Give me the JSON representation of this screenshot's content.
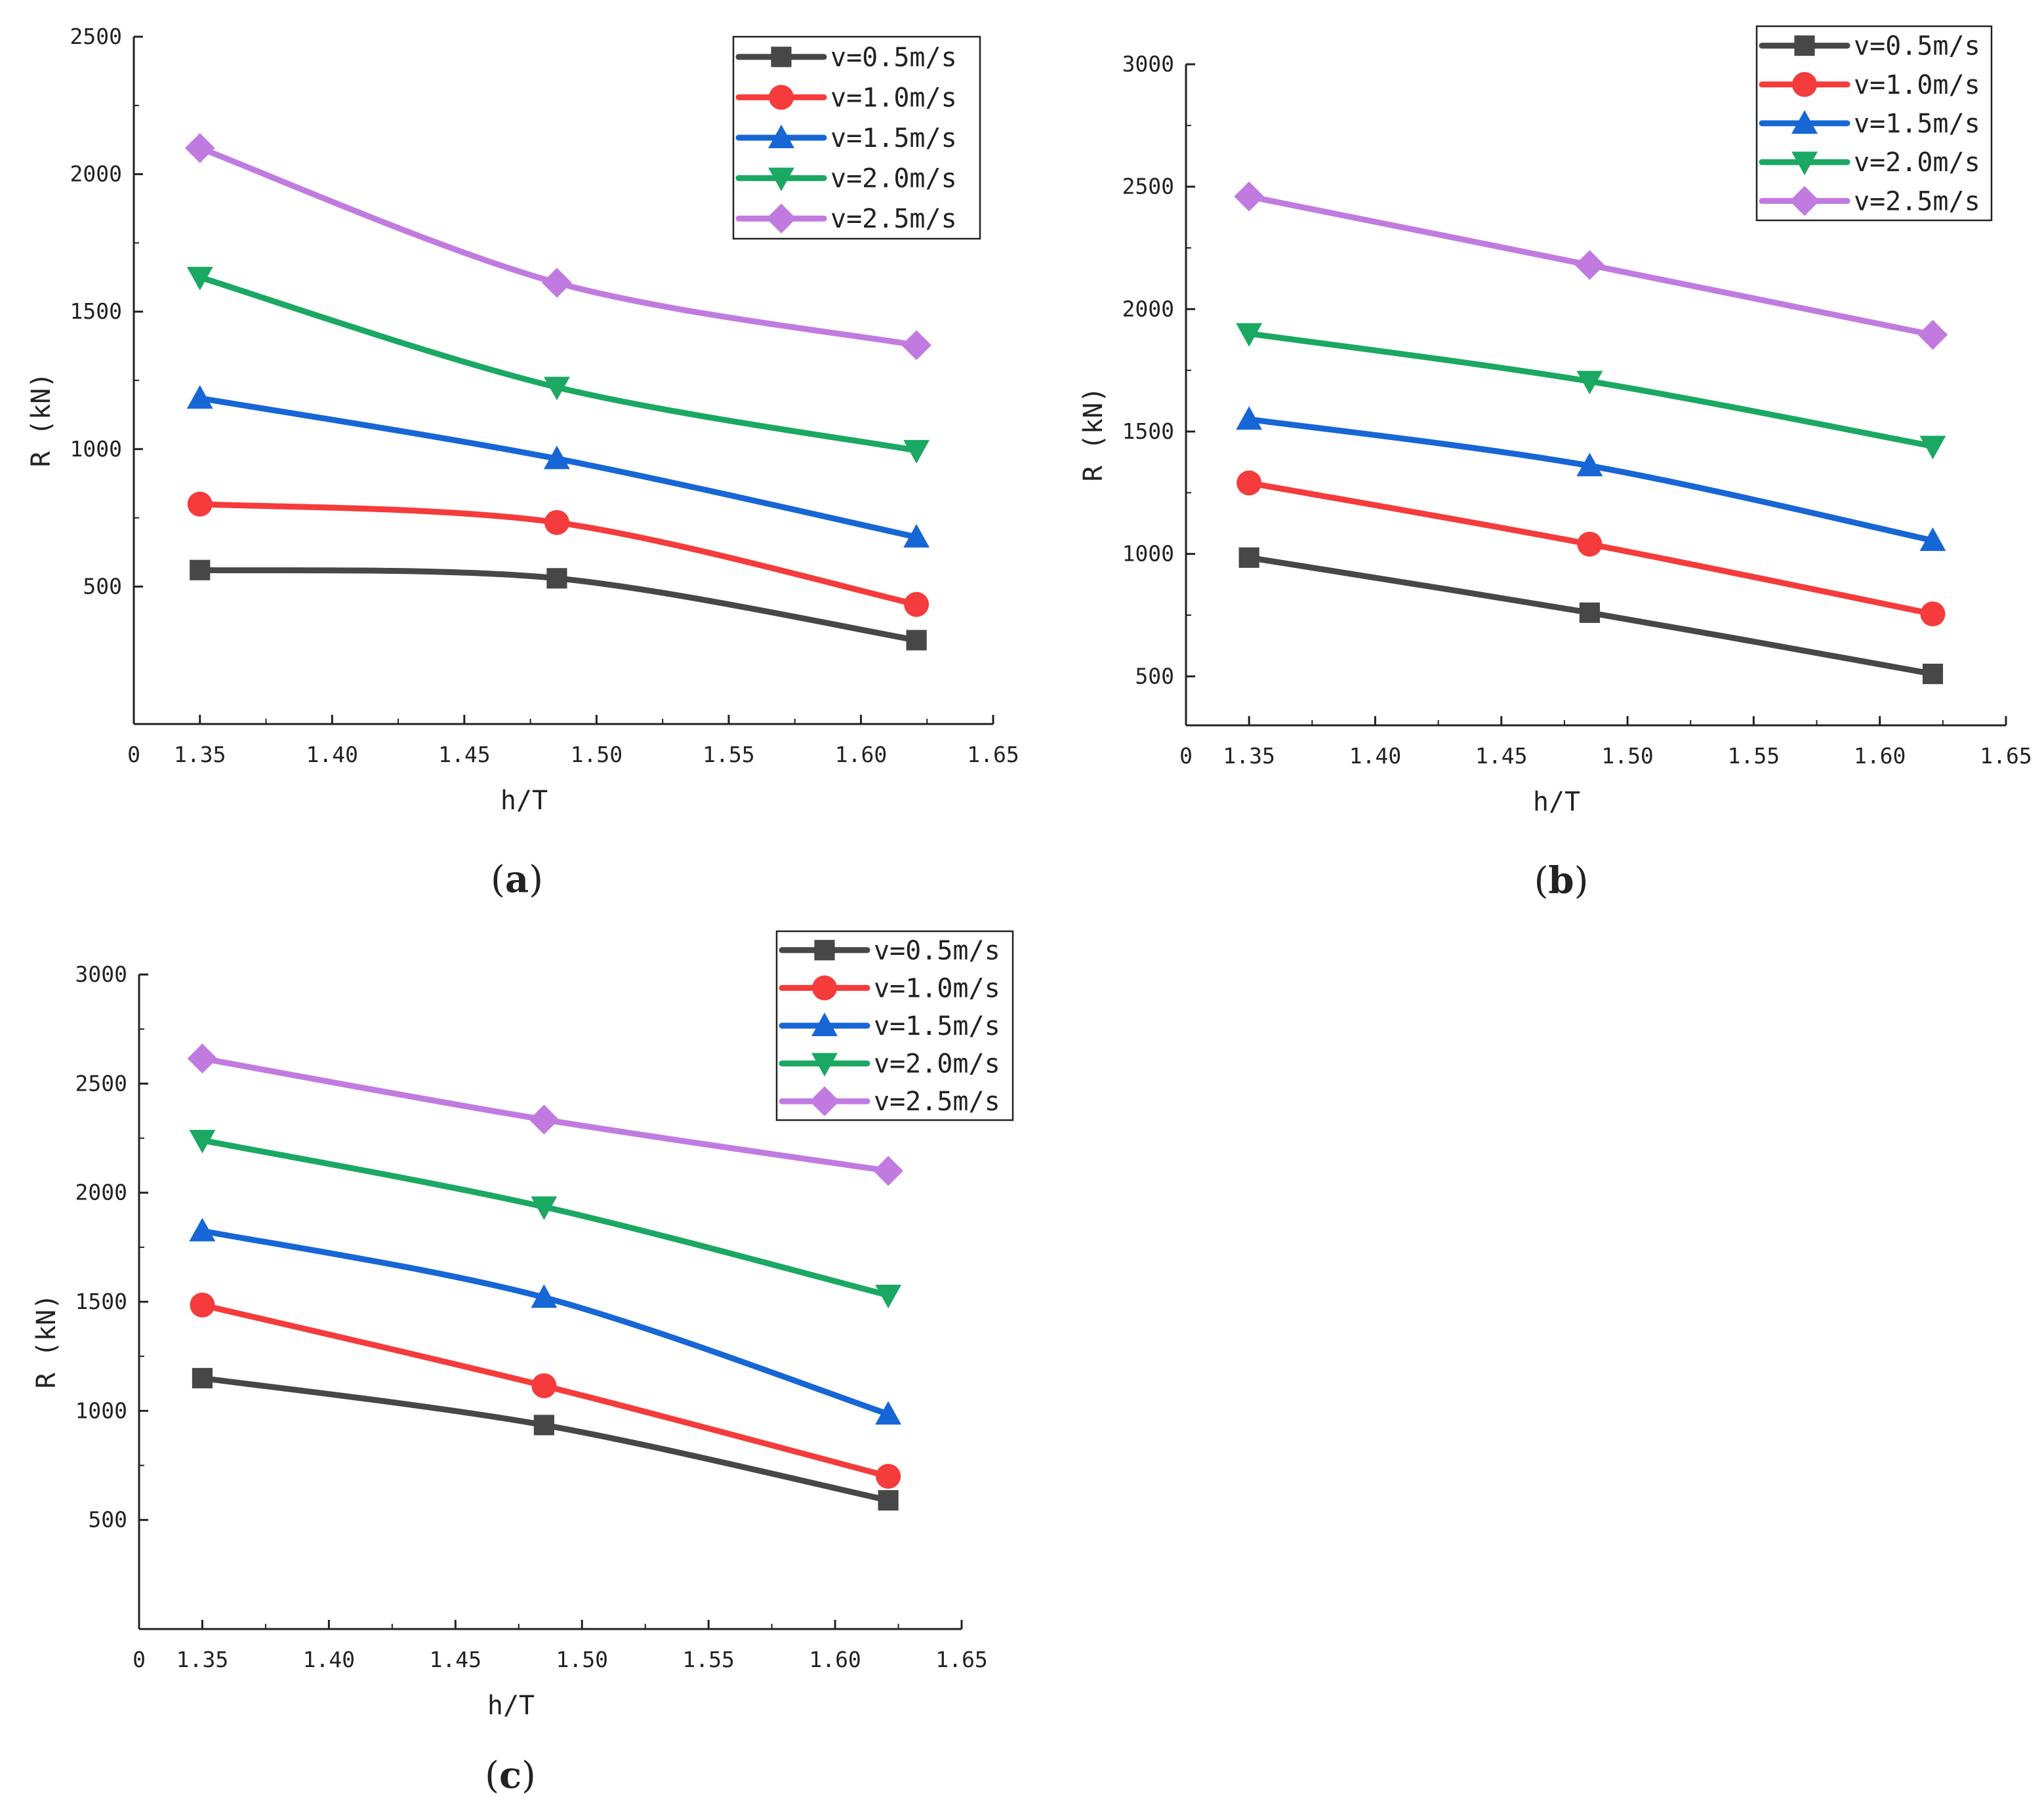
{
  "chart_data": [
    {
      "type": "line",
      "panel_label": "(a)",
      "caption_open": "(",
      "caption_letter": "a",
      "caption_close": ")",
      "xlabel": "h/T",
      "ylabel": "R (kN)",
      "xlim": [
        1.325,
        1.65
      ],
      "ylim": [
        0,
        2500
      ],
      "xticks": [
        1.35,
        1.4,
        1.45,
        1.5,
        1.55,
        1.6,
        1.65
      ],
      "xtick_labels": [
        "1.35",
        "1.40",
        "1.45",
        "1.50",
        "1.55",
        "1.60",
        "1.65"
      ],
      "origin_label": "0",
      "yticks": [
        500,
        1000,
        1500,
        2000,
        2500
      ],
      "ytick_labels": [
        "500",
        "1000",
        "1500",
        "2000",
        "2500"
      ],
      "x": [
        1.35,
        1.485,
        1.621
      ],
      "legend_position": "top-right",
      "series": [
        {
          "name": "v=0.5m/s",
          "values": [
            560,
            530,
            305
          ]
        },
        {
          "name": "v=1.0m/s",
          "values": [
            800,
            733,
            435
          ]
        },
        {
          "name": "v=1.5m/s",
          "values": [
            1185,
            965,
            680
          ]
        },
        {
          "name": "v=2.0m/s",
          "values": [
            1625,
            1225,
            995
          ]
        },
        {
          "name": "v=2.5m/s",
          "values": [
            2095,
            1605,
            1378
          ]
        }
      ]
    },
    {
      "type": "line",
      "panel_label": "(b)",
      "caption_open": "(",
      "caption_letter": "b",
      "caption_close": ")",
      "xlabel": "h/T",
      "ylabel": "R (kN)",
      "xlim": [
        1.325,
        1.65
      ],
      "ylim": [
        300,
        3000
      ],
      "xticks": [
        1.35,
        1.4,
        1.45,
        1.5,
        1.55,
        1.6,
        1.65
      ],
      "xtick_labels": [
        "1.35",
        "1.40",
        "1.45",
        "1.50",
        "1.55",
        "1.60",
        "1.65"
      ],
      "origin_label": "0",
      "yticks": [
        500,
        1000,
        1500,
        2000,
        2500,
        3000
      ],
      "ytick_labels": [
        "500",
        "1000",
        "1500",
        "2000",
        "2500",
        "3000"
      ],
      "x": [
        1.35,
        1.485,
        1.621
      ],
      "legend_position": "top-right",
      "series": [
        {
          "name": "v=0.5m/s",
          "values": [
            985,
            760,
            510
          ]
        },
        {
          "name": "v=1.0m/s",
          "values": [
            1290,
            1040,
            755
          ]
        },
        {
          "name": "v=1.5m/s",
          "values": [
            1550,
            1360,
            1055
          ]
        },
        {
          "name": "v=2.0m/s",
          "values": [
            1900,
            1705,
            1440
          ]
        },
        {
          "name": "v=2.5m/s",
          "values": [
            2460,
            2180,
            1895
          ]
        }
      ]
    },
    {
      "type": "line",
      "panel_label": "(c)",
      "caption_open": "(",
      "caption_letter": "c",
      "caption_close": ")",
      "xlabel": "h/T",
      "ylabel": "R (kN)",
      "xlim": [
        1.325,
        1.65
      ],
      "ylim": [
        0,
        3000
      ],
      "xticks": [
        1.35,
        1.4,
        1.45,
        1.5,
        1.55,
        1.6,
        1.65
      ],
      "xtick_labels": [
        "1.35",
        "1.40",
        "1.45",
        "1.50",
        "1.55",
        "1.60",
        "1.65"
      ],
      "origin_label": "0",
      "yticks": [
        500,
        1000,
        1500,
        2000,
        2500,
        3000
      ],
      "ytick_labels": [
        "500",
        "1000",
        "1500",
        "2000",
        "2500",
        "3000"
      ],
      "x": [
        1.35,
        1.485,
        1.621
      ],
      "legend_position": "top-right",
      "series": [
        {
          "name": "v=0.5m/s",
          "values": [
            1150,
            935,
            590
          ]
        },
        {
          "name": "v=1.0m/s",
          "values": [
            1485,
            1115,
            700
          ]
        },
        {
          "name": "v=1.5m/s",
          "values": [
            1825,
            1520,
            985
          ]
        },
        {
          "name": "v=2.0m/s",
          "values": [
            2240,
            1935,
            1530
          ]
        },
        {
          "name": "v=2.5m/s",
          "values": [
            2615,
            2335,
            2100
          ]
        }
      ]
    }
  ],
  "series_styles": [
    {
      "color": "#474747",
      "marker": "square"
    },
    {
      "color": "#f53b3b",
      "marker": "circle"
    },
    {
      "color": "#1766d6",
      "marker": "triangle-up"
    },
    {
      "color": "#1aa862",
      "marker": "triangle-down"
    },
    {
      "color": "#c17be0",
      "marker": "diamond"
    }
  ],
  "axis_color": "#222222"
}
